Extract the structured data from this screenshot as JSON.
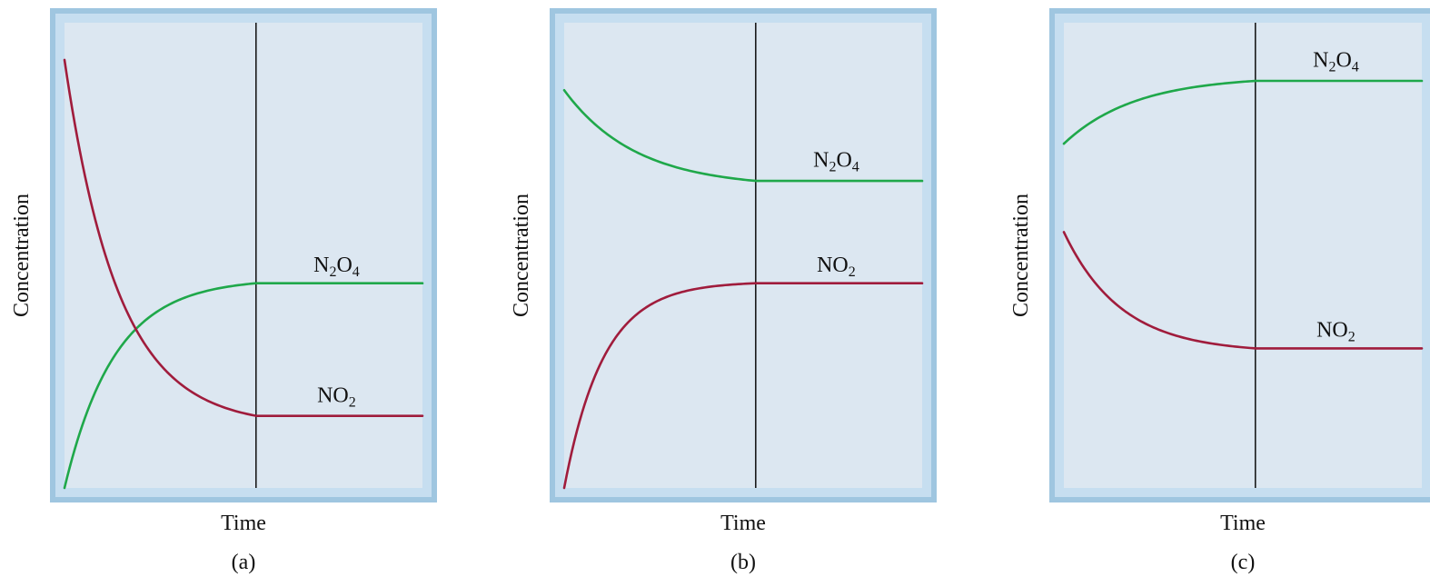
{
  "colors": {
    "frame_outer": "#9fc6e0",
    "frame_inner": "#c6def0",
    "plot_bg": "#dce7f1",
    "no2": "#a01c3c",
    "n2o4": "#1fa84a",
    "divider": "#1a1a1a"
  },
  "chart_data": [
    {
      "type": "line",
      "panel_label": "(a)",
      "xlabel": "Time",
      "ylabel": "Concentration",
      "xlim": [
        0,
        1
      ],
      "ylim": [
        0,
        1
      ],
      "equilibrium_time": 0.535,
      "series": [
        {
          "name": "N2O4",
          "label_base": "N",
          "label_sub1": "2",
          "label_mid": "O",
          "label_sub2": "4",
          "color_key": "n2o4",
          "start": 0.0,
          "end": 0.44,
          "tau": 0.14,
          "label_x": 0.76,
          "label_y": 0.465
        },
        {
          "name": "NO2",
          "label_base": "NO",
          "label_sub1": "2",
          "label_mid": "",
          "label_sub2": "",
          "color_key": "no2",
          "start": 0.92,
          "end": 0.155,
          "tau": 0.15,
          "label_x": 0.76,
          "label_y": 0.185
        }
      ]
    },
    {
      "type": "line",
      "panel_label": "(b)",
      "xlabel": "Time",
      "ylabel": "Concentration",
      "xlim": [
        0,
        1
      ],
      "ylim": [
        0,
        1
      ],
      "equilibrium_time": 0.535,
      "series": [
        {
          "name": "N2O4",
          "label_base": "N",
          "label_sub1": "2",
          "label_mid": "O",
          "label_sub2": "4",
          "color_key": "n2o4",
          "start": 0.855,
          "end": 0.66,
          "tau": 0.2,
          "label_x": 0.76,
          "label_y": 0.69
        },
        {
          "name": "NO2",
          "label_base": "NO",
          "label_sub1": "2",
          "label_mid": "",
          "label_sub2": "",
          "color_key": "no2",
          "start": 0.0,
          "end": 0.44,
          "tau": 0.11,
          "label_x": 0.76,
          "label_y": 0.465
        }
      ]
    },
    {
      "type": "line",
      "panel_label": "(c)",
      "xlabel": "Time",
      "ylabel": "Concentration",
      "xlim": [
        0,
        1
      ],
      "ylim": [
        0,
        1
      ],
      "equilibrium_time": 0.535,
      "series": [
        {
          "name": "N2O4",
          "label_base": "N",
          "label_sub1": "2",
          "label_mid": "O",
          "label_sub2": "4",
          "color_key": "n2o4",
          "start": 0.74,
          "end": 0.875,
          "tau": 0.2,
          "label_x": 0.76,
          "label_y": 0.905
        },
        {
          "name": "NO2",
          "label_base": "NO",
          "label_sub1": "2",
          "label_mid": "",
          "label_sub2": "",
          "color_key": "no2",
          "start": 0.55,
          "end": 0.3,
          "tau": 0.16,
          "label_x": 0.76,
          "label_y": 0.325
        }
      ]
    }
  ]
}
